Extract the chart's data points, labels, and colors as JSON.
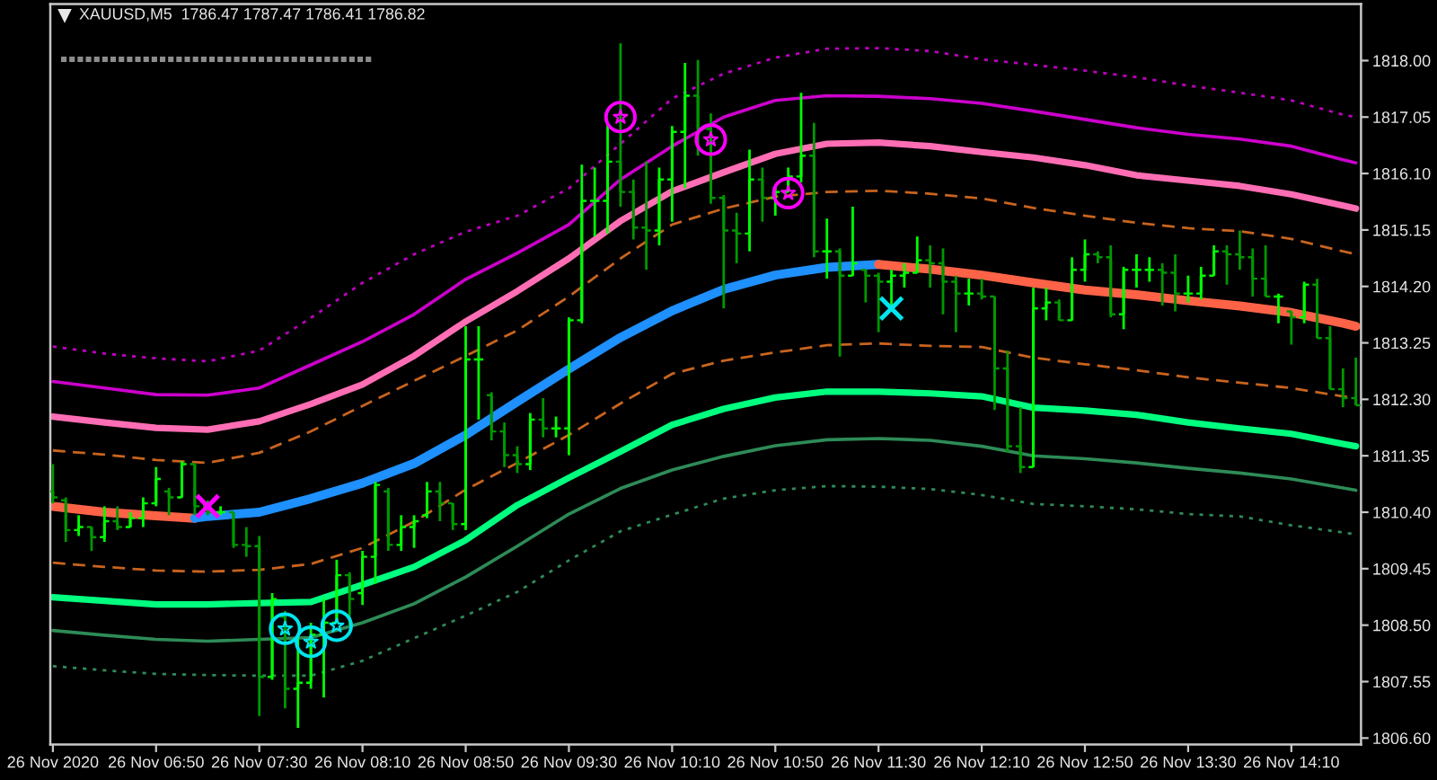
{
  "chart_data": {
    "type": "candlestick",
    "title": "XAUUSD,M5  1786.47 1787.47 1786.41 1786.82",
    "x": [
      "2020-11-26T06:10",
      "2020-11-26T06:15",
      "2020-11-26T06:20",
      "2020-11-26T06:25",
      "2020-11-26T06:30",
      "2020-11-26T06:35",
      "2020-11-26T06:40",
      "2020-11-26T06:45",
      "2020-11-26T06:50",
      "2020-11-26T06:55",
      "2020-11-26T07:00",
      "2020-11-26T07:05",
      "2020-11-26T07:10",
      "2020-11-26T07:15",
      "2020-11-26T07:20",
      "2020-11-26T07:25",
      "2020-11-26T07:30",
      "2020-11-26T07:35",
      "2020-11-26T07:40",
      "2020-11-26T07:45",
      "2020-11-26T07:50",
      "2020-11-26T07:55",
      "2020-11-26T08:00",
      "2020-11-26T08:05",
      "2020-11-26T08:10",
      "2020-11-26T08:15",
      "2020-11-26T08:20",
      "2020-11-26T08:25",
      "2020-11-26T08:30",
      "2020-11-26T08:35",
      "2020-11-26T08:40",
      "2020-11-26T08:45",
      "2020-11-26T08:50",
      "2020-11-26T08:55",
      "2020-11-26T09:00",
      "2020-11-26T09:05",
      "2020-11-26T09:10",
      "2020-11-26T09:15",
      "2020-11-26T09:20",
      "2020-11-26T09:25",
      "2020-11-26T09:30",
      "2020-11-26T09:35",
      "2020-11-26T09:40",
      "2020-11-26T09:45",
      "2020-11-26T09:50",
      "2020-11-26T09:55",
      "2020-11-26T10:00",
      "2020-11-26T10:05",
      "2020-11-26T10:10",
      "2020-11-26T10:15",
      "2020-11-26T10:20",
      "2020-11-26T10:25",
      "2020-11-26T10:30",
      "2020-11-26T10:35",
      "2020-11-26T10:40",
      "2020-11-26T10:45",
      "2020-11-26T10:50",
      "2020-11-26T10:55",
      "2020-11-26T11:00",
      "2020-11-26T11:05",
      "2020-11-26T11:10",
      "2020-11-26T11:15",
      "2020-11-26T11:20",
      "2020-11-26T11:25",
      "2020-11-26T11:30",
      "2020-11-26T11:35",
      "2020-11-26T11:40",
      "2020-11-26T11:45",
      "2020-11-26T11:50",
      "2020-11-26T11:55",
      "2020-11-26T12:00",
      "2020-11-26T12:05",
      "2020-11-26T12:10",
      "2020-11-26T12:15",
      "2020-11-26T12:20",
      "2020-11-26T12:25",
      "2020-11-26T12:30",
      "2020-11-26T12:35",
      "2020-11-26T12:40",
      "2020-11-26T12:45",
      "2020-11-26T12:50",
      "2020-11-26T12:55",
      "2020-11-26T13:00",
      "2020-11-26T13:05",
      "2020-11-26T13:10",
      "2020-11-26T13:15",
      "2020-11-26T13:20",
      "2020-11-26T13:25",
      "2020-11-26T13:30",
      "2020-11-26T13:35",
      "2020-11-26T13:40",
      "2020-11-26T13:45",
      "2020-11-26T13:50",
      "2020-11-26T13:55",
      "2020-11-26T14:00",
      "2020-11-26T14:05",
      "2020-11-26T14:10",
      "2020-11-26T14:15",
      "2020-11-26T14:20",
      "2020-11-26T14:25",
      "2020-11-26T14:30",
      "2020-11-26T14:35"
    ],
    "ohlc": [
      [
        1810.75,
        1811.21,
        1810.55,
        1810.65
      ],
      [
        1810.6,
        1810.65,
        1809.9,
        1810.1
      ],
      [
        1810.1,
        1810.35,
        1810.0,
        1810.15
      ],
      [
        1810.15,
        1810.15,
        1809.75,
        1809.98
      ],
      [
        1809.98,
        1810.5,
        1809.9,
        1810.25
      ],
      [
        1810.25,
        1810.5,
        1810.1,
        1810.15
      ],
      [
        1810.15,
        1810.4,
        1810.15,
        1810.3
      ],
      [
        1810.3,
        1810.65,
        1810.15,
        1810.55
      ],
      [
        1810.55,
        1811.16,
        1810.5,
        1810.96
      ],
      [
        1810.75,
        1810.81,
        1810.35,
        1810.65
      ],
      [
        1810.65,
        1811.26,
        1810.65,
        1811.21
      ],
      [
        1811.21,
        1811.21,
        1810.35,
        1810.5
      ],
      [
        1810.5,
        1810.6,
        1810.35,
        1810.4
      ],
      [
        1810.4,
        1810.5,
        1810.35,
        1810.4
      ],
      [
        1810.4,
        1810.4,
        1809.8,
        1809.85
      ],
      [
        1809.85,
        1810.15,
        1809.65,
        1809.83
      ],
      [
        1809.83,
        1810.0,
        1806.97,
        1807.63
      ],
      [
        1807.63,
        1809.04,
        1807.58,
        1808.94
      ],
      [
        1808.64,
        1808.74,
        1807.1,
        1807.43
      ],
      [
        1807.43,
        1808.34,
        1806.77,
        1807.53
      ],
      [
        1807.53,
        1808.54,
        1807.43,
        1808.34
      ],
      [
        1808.34,
        1808.94,
        1807.28,
        1808.54
      ],
      [
        1808.54,
        1809.6,
        1808.54,
        1809.34
      ],
      [
        1809.34,
        1809.39,
        1808.49,
        1808.94
      ],
      [
        1809.04,
        1809.75,
        1808.84,
        1809.65
      ],
      [
        1809.65,
        1810.91,
        1809.2,
        1810.86
      ],
      [
        1810.75,
        1810.81,
        1809.75,
        1809.85
      ],
      [
        1809.85,
        1810.35,
        1809.75,
        1810.15
      ],
      [
        1810.15,
        1810.35,
        1809.8,
        1810.25
      ],
      [
        1810.35,
        1810.91,
        1810.3,
        1810.75
      ],
      [
        1810.75,
        1810.91,
        1810.25,
        1810.55
      ],
      [
        1810.55,
        1810.55,
        1810.1,
        1810.2
      ],
      [
        1810.2,
        1813.53,
        1810.1,
        1812.97
      ],
      [
        1812.97,
        1813.53,
        1811.96,
        1812.97
      ],
      [
        1812.37,
        1812.42,
        1811.61,
        1811.76
      ],
      [
        1811.76,
        1811.91,
        1811.16,
        1811.36
      ],
      [
        1811.36,
        1811.51,
        1811.06,
        1811.21
      ],
      [
        1811.21,
        1812.07,
        1811.11,
        1811.96
      ],
      [
        1811.96,
        1812.32,
        1811.66,
        1811.81
      ],
      [
        1811.81,
        1812.01,
        1811.66,
        1811.81
      ],
      [
        1811.81,
        1813.68,
        1811.36,
        1813.63
      ],
      [
        1813.63,
        1816.25,
        1813.58,
        1815.64
      ],
      [
        1815.64,
        1816.2,
        1815.04,
        1815.64
      ],
      [
        1815.64,
        1816.95,
        1815.09,
        1816.3
      ],
      [
        1816.3,
        1818.29,
        1815.54,
        1815.79
      ],
      [
        1815.79,
        1816.0,
        1814.99,
        1815.19
      ],
      [
        1815.19,
        1816.3,
        1814.48,
        1815.14
      ],
      [
        1815.14,
        1816.2,
        1814.89,
        1816.0
      ],
      [
        1816.0,
        1816.9,
        1815.29,
        1816.8
      ],
      [
        1816.8,
        1817.96,
        1815.85,
        1817.41
      ],
      [
        1817.41,
        1818.01,
        1816.4,
        1816.85
      ],
      [
        1816.85,
        1817.11,
        1815.59,
        1815.69
      ],
      [
        1815.69,
        1815.74,
        1813.83,
        1815.14
      ],
      [
        1815.14,
        1815.44,
        1814.59,
        1815.09
      ],
      [
        1815.09,
        1816.5,
        1814.79,
        1816.0
      ],
      [
        1816.0,
        1816.2,
        1815.29,
        1815.69
      ],
      [
        1815.69,
        1815.9,
        1815.39,
        1815.79
      ],
      [
        1815.79,
        1816.2,
        1815.79,
        1816.05
      ],
      [
        1816.05,
        1817.46,
        1815.95,
        1816.4
      ],
      [
        1816.4,
        1816.95,
        1814.69,
        1814.79
      ],
      [
        1814.79,
        1815.34,
        1814.33,
        1814.79
      ],
      [
        1814.79,
        1814.84,
        1813.02,
        1814.38
      ],
      [
        1814.38,
        1815.54,
        1814.38,
        1814.59
      ],
      [
        1814.48,
        1814.48,
        1813.93,
        1814.38
      ],
      [
        1814.38,
        1814.43,
        1813.43,
        1814.28
      ],
      [
        1814.28,
        1814.48,
        1813.88,
        1814.38
      ],
      [
        1814.38,
        1814.59,
        1814.18,
        1814.43
      ],
      [
        1814.43,
        1815.04,
        1814.43,
        1814.64
      ],
      [
        1814.64,
        1814.89,
        1814.18,
        1814.59
      ],
      [
        1814.59,
        1814.84,
        1813.73,
        1814.28
      ],
      [
        1814.28,
        1814.38,
        1813.43,
        1814.08
      ],
      [
        1814.08,
        1814.33,
        1813.88,
        1814.08
      ],
      [
        1814.08,
        1814.33,
        1813.98,
        1814.03
      ],
      [
        1814.03,
        1814.03,
        1812.12,
        1812.82
      ],
      [
        1812.82,
        1813.12,
        1811.41,
        1811.51
      ],
      [
        1811.51,
        1812.17,
        1811.06,
        1811.16
      ],
      [
        1811.16,
        1814.18,
        1811.16,
        1813.83
      ],
      [
        1813.83,
        1814.18,
        1813.63,
        1813.93
      ],
      [
        1813.93,
        1813.98,
        1813.63,
        1813.63
      ],
      [
        1813.63,
        1814.69,
        1813.63,
        1814.48
      ],
      [
        1814.48,
        1814.99,
        1814.28,
        1814.74
      ],
      [
        1814.74,
        1814.79,
        1814.59,
        1814.69
      ],
      [
        1814.69,
        1814.89,
        1813.68,
        1813.73
      ],
      [
        1813.73,
        1814.53,
        1813.48,
        1814.48
      ],
      [
        1814.48,
        1814.74,
        1814.18,
        1814.48
      ],
      [
        1814.48,
        1814.69,
        1814.28,
        1814.48
      ],
      [
        1814.48,
        1814.59,
        1813.88,
        1814.43
      ],
      [
        1814.43,
        1814.74,
        1813.78,
        1814.08
      ],
      [
        1814.08,
        1814.38,
        1813.93,
        1814.08
      ],
      [
        1814.08,
        1814.53,
        1813.98,
        1814.38
      ],
      [
        1814.38,
        1814.89,
        1814.38,
        1814.79
      ],
      [
        1814.79,
        1814.89,
        1814.23,
        1814.74
      ],
      [
        1814.74,
        1815.14,
        1814.48,
        1814.69
      ],
      [
        1814.69,
        1814.84,
        1814.03,
        1814.33
      ],
      [
        1814.33,
        1814.89,
        1814.03,
        1814.03
      ],
      [
        1814.03,
        1814.08,
        1813.58,
        1814.03
      ],
      [
        1813.78,
        1813.78,
        1813.22,
        1813.68
      ],
      [
        1813.68,
        1814.28,
        1813.58,
        1814.23
      ],
      [
        1814.23,
        1814.33,
        1813.33,
        1813.33
      ],
      [
        1813.33,
        1813.53,
        1812.47,
        1812.47
      ],
      [
        1812.47,
        1812.82,
        1812.17,
        1812.32
      ],
      [
        1812.32,
        1813.0,
        1812.2,
        1812.2
      ]
    ],
    "colors": [
      "#009900",
      "#009900",
      "#00ff00",
      "#009900",
      "#00ff00",
      "#009900",
      "#00ff00",
      "#00ff00",
      "#00ff00",
      "#009900",
      "#00ff00",
      "#009900",
      "#009900",
      "#00ff00",
      "#009900",
      "#009900",
      "#009900",
      "#00ff00",
      "#009900",
      "#00ff00",
      "#00ff00",
      "#00ff00",
      "#00ff00",
      "#009900",
      "#00ff00",
      "#00ff00",
      "#009900",
      "#00ff00",
      "#00ff00",
      "#00ff00",
      "#009900",
      "#009900",
      "#00ff00",
      "#00ff00",
      "#009900",
      "#009900",
      "#009900",
      "#00ff00",
      "#009900",
      "#00ff00",
      "#00ff00",
      "#00ff00",
      "#00ff00",
      "#00ff00",
      "#009900",
      "#009900",
      "#009900",
      "#00ff00",
      "#00ff00",
      "#00ff00",
      "#009900",
      "#009900",
      "#009900",
      "#009900",
      "#00ff00",
      "#009900",
      "#00ff00",
      "#00ff00",
      "#00ff00",
      "#009900",
      "#00ff00",
      "#009900",
      "#00ff00",
      "#009900",
      "#009900",
      "#00ff00",
      "#00ff00",
      "#00ff00",
      "#009900",
      "#009900",
      "#009900",
      "#00ff00",
      "#009900",
      "#009900",
      "#009900",
      "#009900",
      "#00ff00",
      "#00ff00",
      "#009900",
      "#00ff00",
      "#00ff00",
      "#009900",
      "#009900",
      "#00ff00",
      "#00ff00",
      "#00ff00",
      "#009900",
      "#009900",
      "#00ff00",
      "#00ff00",
      "#00ff00",
      "#009900",
      "#009900",
      "#009900",
      "#009900",
      "#00ff00",
      "#009900",
      "#00ff00",
      "#009900",
      "#009900",
      "#009900",
      "#009900"
    ],
    "xlim": [
      "2020-11-26T06:09",
      "2020-11-26T14:37"
    ],
    "ylim": [
      1806.49,
      1818.95
    ],
    "xticks": [
      {
        "value": "2020-11-26T06:10",
        "label": "26 Nov 2020"
      },
      {
        "value": "2020-11-26T06:50",
        "label": "26 Nov 06:50"
      },
      {
        "value": "2020-11-26T07:30",
        "label": "26 Nov 07:30"
      },
      {
        "value": "2020-11-26T08:10",
        "label": "26 Nov 08:10"
      },
      {
        "value": "2020-11-26T08:50",
        "label": "26 Nov 08:50"
      },
      {
        "value": "2020-11-26T09:30",
        "label": "26 Nov 09:30"
      },
      {
        "value": "2020-11-26T10:10",
        "label": "26 Nov 10:10"
      },
      {
        "value": "2020-11-26T10:50",
        "label": "26 Nov 10:50"
      },
      {
        "value": "2020-11-26T11:30",
        "label": "26 Nov 11:30"
      },
      {
        "value": "2020-11-26T12:10",
        "label": "26 Nov 12:10"
      },
      {
        "value": "2020-11-26T12:50",
        "label": "26 Nov 12:50"
      },
      {
        "value": "2020-11-26T13:30",
        "label": "26 Nov 13:30"
      },
      {
        "value": "2020-11-26T14:10",
        "label": "26 Nov 14:10"
      }
    ],
    "yticks": [
      {
        "value": 1818.0,
        "label": "1818.00"
      },
      {
        "value": 1817.05,
        "label": "1817.05"
      },
      {
        "value": 1816.1,
        "label": "1816.10"
      },
      {
        "value": 1815.15,
        "label": "1815.15"
      },
      {
        "value": 1814.2,
        "label": "1814.20"
      },
      {
        "value": 1813.25,
        "label": "1813.25"
      },
      {
        "value": 1812.3,
        "label": "1812.30"
      },
      {
        "value": 1811.35,
        "label": "1811.35"
      },
      {
        "value": 1810.4,
        "label": "1810.40"
      },
      {
        "value": 1809.45,
        "label": "1809.45"
      },
      {
        "value": 1808.5,
        "label": "1808.50"
      },
      {
        "value": 1807.55,
        "label": "1807.55"
      },
      {
        "value": 1806.6,
        "label": "1806.60"
      }
    ],
    "series": [
      {
        "type": "line",
        "color": "#c000c0",
        "line_style": "dotted",
        "x": [
          "2020-11-26T06:10",
          "2020-11-26T06:30",
          "2020-11-26T06:50",
          "2020-11-26T07:10",
          "2020-11-26T07:30",
          "2020-11-26T07:50",
          "2020-11-26T08:10",
          "2020-11-26T08:30",
          "2020-11-26T08:50",
          "2020-11-26T09:10",
          "2020-11-26T09:30",
          "2020-11-26T09:50",
          "2020-11-26T10:10",
          "2020-11-26T10:30",
          "2020-11-26T10:50",
          "2020-11-26T11:10",
          "2020-11-26T11:30",
          "2020-11-26T11:50",
          "2020-11-26T12:10",
          "2020-11-26T12:30",
          "2020-11-26T12:50",
          "2020-11-26T13:10",
          "2020-11-26T13:30",
          "2020-11-26T13:50",
          "2020-11-26T14:10",
          "2020-11-26T14:30",
          "2020-11-26T14:35"
        ],
        "values": [
          1813.19,
          1813.07,
          1812.99,
          1812.94,
          1813.12,
          1813.67,
          1814.26,
          1814.74,
          1815.12,
          1815.39,
          1815.85,
          1816.6,
          1817.36,
          1817.78,
          1818.05,
          1818.2,
          1818.21,
          1818.16,
          1818.02,
          1817.93,
          1817.83,
          1817.72,
          1817.58,
          1817.46,
          1817.33,
          1817.09,
          1817.05
        ]
      },
      {
        "type": "line",
        "color": "#cc00cc",
        "line_style": "solid",
        "x": [
          "2020-11-26T06:10",
          "2020-11-26T06:30",
          "2020-11-26T06:50",
          "2020-11-26T07:10",
          "2020-11-26T07:30",
          "2020-11-26T07:50",
          "2020-11-26T08:10",
          "2020-11-26T08:30",
          "2020-11-26T08:50",
          "2020-11-26T09:10",
          "2020-11-26T09:30",
          "2020-11-26T09:50",
          "2020-11-26T10:10",
          "2020-11-26T10:30",
          "2020-11-26T10:50",
          "2020-11-26T11:10",
          "2020-11-26T11:30",
          "2020-11-26T11:50",
          "2020-11-26T12:10",
          "2020-11-26T12:30",
          "2020-11-26T12:50",
          "2020-11-26T13:10",
          "2020-11-26T13:30",
          "2020-11-26T13:50",
          "2020-11-26T14:10",
          "2020-11-26T14:30",
          "2020-11-26T14:35"
        ],
        "values": [
          1812.6,
          1812.49,
          1812.38,
          1812.37,
          1812.49,
          1812.88,
          1813.27,
          1813.73,
          1814.32,
          1814.76,
          1815.24,
          1816.0,
          1816.56,
          1817.05,
          1817.33,
          1817.41,
          1817.4,
          1817.36,
          1817.28,
          1817.15,
          1817.01,
          1816.87,
          1816.76,
          1816.68,
          1816.56,
          1816.33,
          1816.28
        ]
      },
      {
        "type": "line",
        "color": "#ff6eb4",
        "line_style": "solid",
        "x": [
          "2020-11-26T06:10",
          "2020-11-26T06:30",
          "2020-11-26T06:50",
          "2020-11-26T07:10",
          "2020-11-26T07:30",
          "2020-11-26T07:50",
          "2020-11-26T08:10",
          "2020-11-26T08:30",
          "2020-11-26T08:50",
          "2020-11-26T09:10",
          "2020-11-26T09:30",
          "2020-11-26T09:50",
          "2020-11-26T10:10",
          "2020-11-26T10:30",
          "2020-11-26T10:50",
          "2020-11-26T11:10",
          "2020-11-26T11:30",
          "2020-11-26T11:50",
          "2020-11-26T12:10",
          "2020-11-26T12:30",
          "2020-11-26T12:50",
          "2020-11-26T13:10",
          "2020-11-26T13:30",
          "2020-11-26T13:50",
          "2020-11-26T14:10",
          "2020-11-26T14:30",
          "2020-11-26T14:35"
        ],
        "values": [
          1812.01,
          1811.91,
          1811.82,
          1811.79,
          1811.93,
          1812.22,
          1812.55,
          1813.03,
          1813.61,
          1814.12,
          1814.67,
          1815.3,
          1815.8,
          1816.12,
          1816.43,
          1816.6,
          1816.62,
          1816.56,
          1816.46,
          1816.37,
          1816.24,
          1816.07,
          1815.98,
          1815.89,
          1815.75,
          1815.56,
          1815.51
        ]
      },
      {
        "type": "line",
        "color": "#c8641e",
        "line_style": "dashed",
        "x": [
          "2020-11-26T06:10",
          "2020-11-26T06:30",
          "2020-11-26T06:50",
          "2020-11-26T07:10",
          "2020-11-26T07:30",
          "2020-11-26T07:50",
          "2020-11-26T08:10",
          "2020-11-26T08:30",
          "2020-11-26T08:50",
          "2020-11-26T09:10",
          "2020-11-26T09:30",
          "2020-11-26T09:50",
          "2020-11-26T10:10",
          "2020-11-26T10:30",
          "2020-11-26T10:50",
          "2020-11-26T11:10",
          "2020-11-26T11:30",
          "2020-11-26T11:50",
          "2020-11-26T12:10",
          "2020-11-26T12:30",
          "2020-11-26T12:50",
          "2020-11-26T13:10",
          "2020-11-26T13:30",
          "2020-11-26T13:50",
          "2020-11-26T14:10",
          "2020-11-26T14:30",
          "2020-11-26T14:35"
        ],
        "values": [
          1811.44,
          1811.37,
          1811.28,
          1811.23,
          1811.4,
          1811.76,
          1812.19,
          1812.61,
          1813.03,
          1813.46,
          1814.03,
          1814.67,
          1815.24,
          1815.51,
          1815.71,
          1815.79,
          1815.81,
          1815.76,
          1815.68,
          1815.52,
          1815.39,
          1815.27,
          1815.18,
          1815.13,
          1815.0,
          1814.79,
          1814.74
        ]
      },
      {
        "type": "line",
        "color": "#ff6347",
        "line_style": "solid",
        "x": [
          "2020-11-26T06:10",
          "2020-11-26T06:30",
          "2020-11-26T06:50",
          "2020-11-26T07:05"
        ],
        "values": [
          1810.5,
          1810.4,
          1810.34,
          1810.3
        ]
      },
      {
        "type": "line",
        "color": "#1e90ff",
        "line_style": "solid",
        "x": [
          "2020-11-26T07:05",
          "2020-11-26T07:10",
          "2020-11-26T07:30",
          "2020-11-26T07:50",
          "2020-11-26T08:10",
          "2020-11-26T08:30",
          "2020-11-26T08:50",
          "2020-11-26T09:10",
          "2020-11-26T09:30",
          "2020-11-26T09:50",
          "2020-11-26T10:10",
          "2020-11-26T10:30",
          "2020-11-26T10:50",
          "2020-11-26T11:10",
          "2020-11-26T11:30"
        ],
        "values": [
          1810.3,
          1810.33,
          1810.4,
          1810.63,
          1810.89,
          1811.22,
          1811.7,
          1812.26,
          1812.81,
          1813.34,
          1813.79,
          1814.15,
          1814.39,
          1814.52,
          1814.57
        ]
      },
      {
        "type": "line",
        "color": "#ff6347",
        "line_style": "solid",
        "x": [
          "2020-11-26T11:30",
          "2020-11-26T11:50",
          "2020-11-26T12:10",
          "2020-11-26T12:30",
          "2020-11-26T12:50",
          "2020-11-26T13:10",
          "2020-11-26T13:30",
          "2020-11-26T13:50",
          "2020-11-26T14:10",
          "2020-11-26T14:30",
          "2020-11-26T14:35"
        ],
        "values": [
          1814.57,
          1814.49,
          1814.39,
          1814.26,
          1814.14,
          1814.06,
          1813.96,
          1813.87,
          1813.76,
          1813.58,
          1813.53
        ]
      },
      {
        "type": "line",
        "color": "#c8641e",
        "line_style": "dashed",
        "x": [
          "2020-11-26T06:10",
          "2020-11-26T06:30",
          "2020-11-26T06:50",
          "2020-11-26T07:10",
          "2020-11-26T07:30",
          "2020-11-26T07:50",
          "2020-11-26T08:10",
          "2020-11-26T08:30",
          "2020-11-26T08:50",
          "2020-11-26T09:10",
          "2020-11-26T09:30",
          "2020-11-26T09:50",
          "2020-11-26T10:10",
          "2020-11-26T10:30",
          "2020-11-26T10:50",
          "2020-11-26T11:10",
          "2020-11-26T11:30",
          "2020-11-26T11:50",
          "2020-11-26T12:10",
          "2020-11-26T12:30",
          "2020-11-26T12:50",
          "2020-11-26T13:10",
          "2020-11-26T13:30",
          "2020-11-26T13:50",
          "2020-11-26T14:10",
          "2020-11-26T14:30",
          "2020-11-26T14:35"
        ],
        "values": [
          1809.55,
          1809.48,
          1809.42,
          1809.4,
          1809.43,
          1809.53,
          1809.8,
          1810.24,
          1810.78,
          1811.23,
          1811.7,
          1812.23,
          1812.73,
          1812.95,
          1813.09,
          1813.21,
          1813.24,
          1813.2,
          1813.18,
          1813.0,
          1812.89,
          1812.79,
          1812.67,
          1812.58,
          1812.49,
          1812.35,
          1812.32
        ]
      },
      {
        "type": "line",
        "color": "#00ff7f",
        "line_style": "solid",
        "x": [
          "2020-11-26T06:10",
          "2020-11-26T06:30",
          "2020-11-26T06:50",
          "2020-11-26T07:10",
          "2020-11-26T07:30",
          "2020-11-26T07:50",
          "2020-11-26T08:10",
          "2020-11-26T08:30",
          "2020-11-26T08:50",
          "2020-11-26T09:10",
          "2020-11-26T09:30",
          "2020-11-26T09:50",
          "2020-11-26T10:10",
          "2020-11-26T10:30",
          "2020-11-26T10:50",
          "2020-11-26T11:10",
          "2020-11-26T11:30",
          "2020-11-26T11:50",
          "2020-11-26T12:10",
          "2020-11-26T12:30",
          "2020-11-26T12:50",
          "2020-11-26T13:10",
          "2020-11-26T13:30",
          "2020-11-26T13:50",
          "2020-11-26T14:10",
          "2020-11-26T14:30",
          "2020-11-26T14:35"
        ],
        "values": [
          1808.97,
          1808.91,
          1808.85,
          1808.85,
          1808.87,
          1808.89,
          1809.18,
          1809.48,
          1809.93,
          1810.52,
          1810.98,
          1811.42,
          1811.87,
          1812.14,
          1812.33,
          1812.43,
          1812.43,
          1812.4,
          1812.35,
          1812.16,
          1812.11,
          1812.04,
          1811.91,
          1811.81,
          1811.72,
          1811.55,
          1811.51
        ]
      },
      {
        "type": "line",
        "color": "#2e8b57",
        "line_style": "solid",
        "x": [
          "2020-11-26T06:10",
          "2020-11-26T06:30",
          "2020-11-26T06:50",
          "2020-11-26T07:10",
          "2020-11-26T07:30",
          "2020-11-26T07:50",
          "2020-11-26T08:10",
          "2020-11-26T08:30",
          "2020-11-26T08:50",
          "2020-11-26T09:10",
          "2020-11-26T09:30",
          "2020-11-26T09:50",
          "2020-11-26T10:10",
          "2020-11-26T10:30",
          "2020-11-26T10:50",
          "2020-11-26T11:10",
          "2020-11-26T11:30",
          "2020-11-26T11:50",
          "2020-11-26T12:10",
          "2020-11-26T12:30",
          "2020-11-26T12:50",
          "2020-11-26T13:10",
          "2020-11-26T13:30",
          "2020-11-26T13:50",
          "2020-11-26T14:10",
          "2020-11-26T14:30",
          "2020-11-26T14:35"
        ],
        "values": [
          1808.41,
          1808.33,
          1808.26,
          1808.23,
          1808.26,
          1808.29,
          1808.54,
          1808.86,
          1809.31,
          1809.83,
          1810.37,
          1810.8,
          1811.11,
          1811.34,
          1811.52,
          1811.62,
          1811.64,
          1811.61,
          1811.51,
          1811.35,
          1811.3,
          1811.23,
          1811.14,
          1811.06,
          1810.96,
          1810.81,
          1810.77
        ]
      },
      {
        "type": "line",
        "color": "#2e8b57",
        "line_style": "dotted",
        "x": [
          "2020-11-26T06:10",
          "2020-11-26T06:30",
          "2020-11-26T06:50",
          "2020-11-26T07:10",
          "2020-11-26T07:30",
          "2020-11-26T07:50",
          "2020-11-26T08:10",
          "2020-11-26T08:30",
          "2020-11-26T08:50",
          "2020-11-26T09:10",
          "2020-11-26T09:30",
          "2020-11-26T09:50",
          "2020-11-26T10:10",
          "2020-11-26T10:30",
          "2020-11-26T10:50",
          "2020-11-26T11:10",
          "2020-11-26T11:30",
          "2020-11-26T11:50",
          "2020-11-26T12:10",
          "2020-11-26T12:30",
          "2020-11-26T12:50",
          "2020-11-26T13:10",
          "2020-11-26T13:30",
          "2020-11-26T13:50",
          "2020-11-26T14:10",
          "2020-11-26T14:30",
          "2020-11-26T14:35"
        ],
        "values": [
          1807.81,
          1807.74,
          1807.68,
          1807.66,
          1807.65,
          1807.65,
          1807.9,
          1808.28,
          1808.66,
          1809.06,
          1809.59,
          1810.08,
          1810.36,
          1810.63,
          1810.77,
          1810.84,
          1810.83,
          1810.79,
          1810.69,
          1810.54,
          1810.5,
          1810.45,
          1810.37,
          1810.33,
          1810.18,
          1810.06,
          1810.03
        ]
      },
      {
        "type": "scatter",
        "color": "#ff00ff",
        "marker": "circle",
        "x": [
          "2020-11-26T09:50",
          "2020-11-26T10:25",
          "2020-11-26T10:55"
        ],
        "values": [
          1817.05,
          1816.67,
          1815.77
        ]
      },
      {
        "type": "scatter",
        "color": "#00e5ee",
        "marker": "circle",
        "x": [
          "2020-11-26T07:40",
          "2020-11-26T07:50",
          "2020-11-26T08:00"
        ],
        "values": [
          1808.44,
          1808.22,
          1808.49
        ]
      },
      {
        "type": "scatter",
        "color": "#ff00ff",
        "marker": "cross",
        "x": [
          "2020-11-26T07:10"
        ],
        "values": [
          1810.5
        ]
      },
      {
        "type": "scatter",
        "color": "#00e5ee",
        "marker": "cross",
        "x": [
          "2020-11-26T11:35"
        ],
        "values": [
          1813.83
        ]
      }
    ]
  }
}
